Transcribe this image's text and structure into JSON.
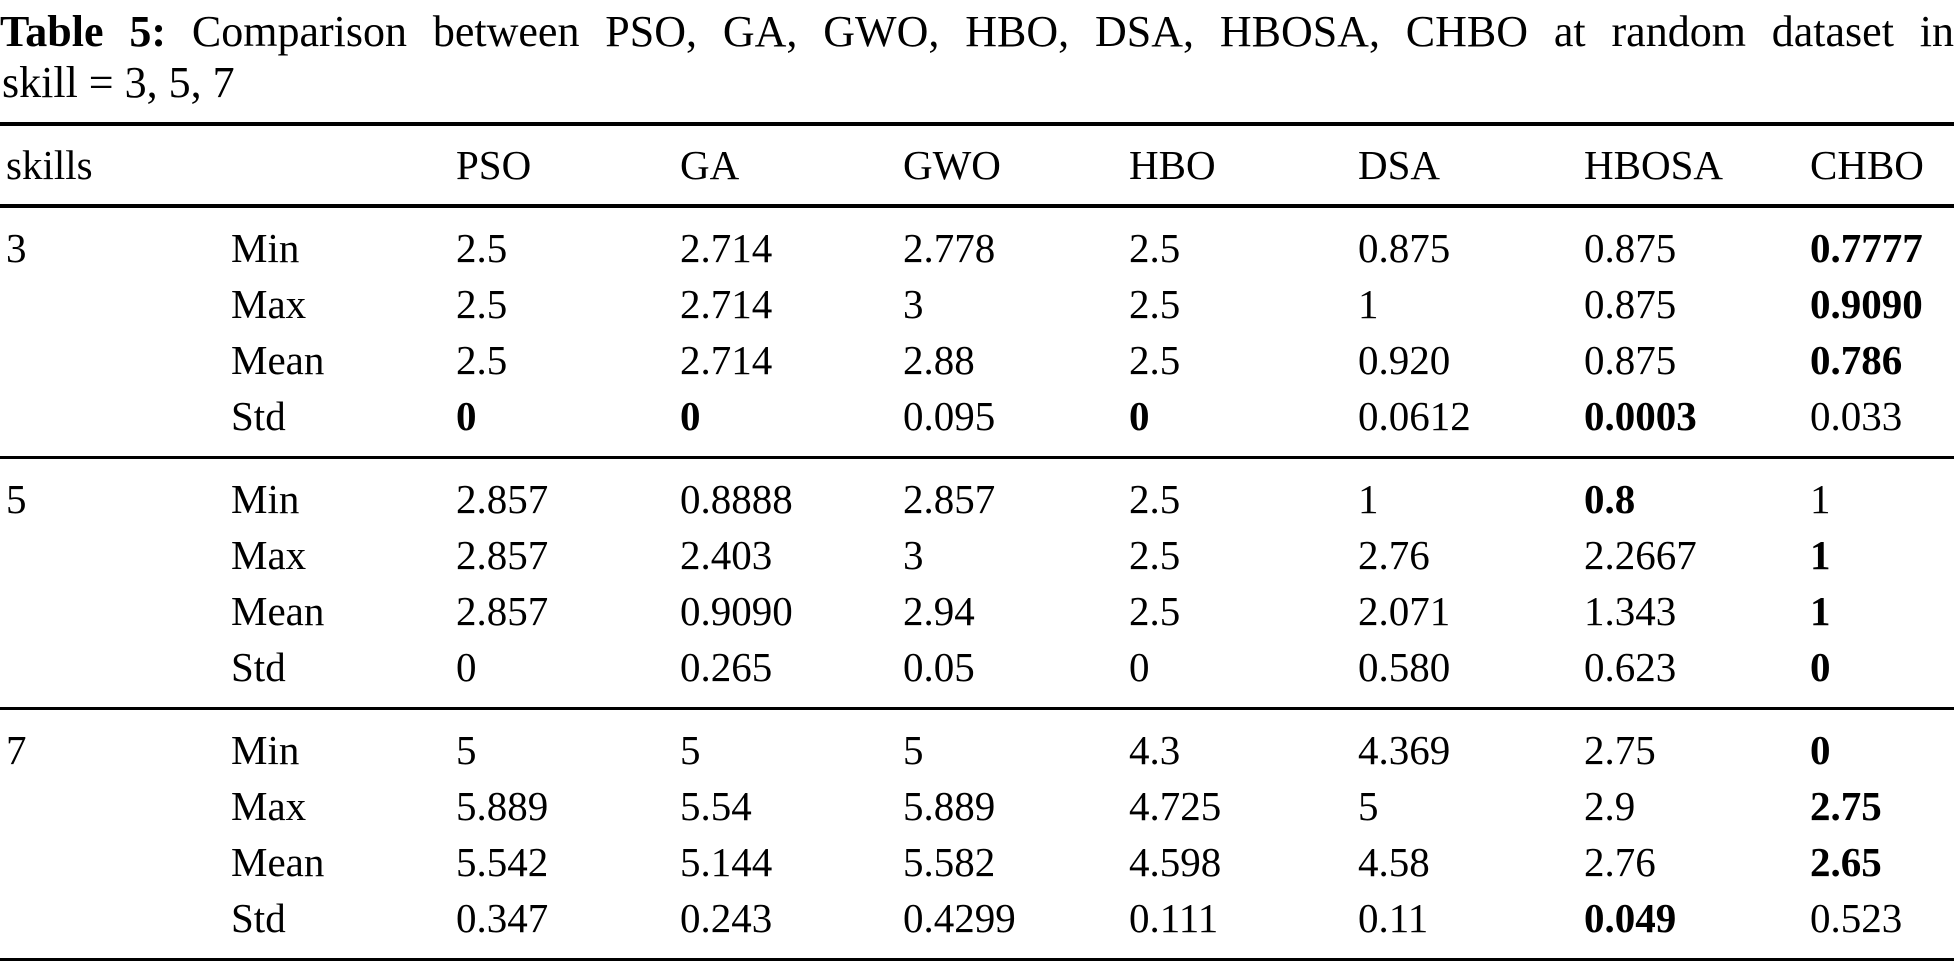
{
  "caption": {
    "label": "Table 5:",
    "line1": "Comparison between PSO, GA, GWO, HBO, DSA, HBOSA, CHBO at random dataset in",
    "line2": "skill = 3, 5, 7"
  },
  "table": {
    "columns": [
      "skills",
      "",
      "PSO",
      "GA",
      "GWO",
      "HBO",
      "DSA",
      "HBOSA",
      "CHBO"
    ],
    "groups": [
      {
        "skill": "3",
        "rows": [
          {
            "stat": "Min",
            "cells": [
              {
                "v": "2.5",
                "b": false
              },
              {
                "v": "2.714",
                "b": false
              },
              {
                "v": "2.778",
                "b": false
              },
              {
                "v": "2.5",
                "b": false
              },
              {
                "v": "0.875",
                "b": false
              },
              {
                "v": "0.875",
                "b": false
              },
              {
                "v": "0.7777",
                "b": true
              }
            ]
          },
          {
            "stat": "Max",
            "cells": [
              {
                "v": "2.5",
                "b": false
              },
              {
                "v": "2.714",
                "b": false
              },
              {
                "v": "3",
                "b": false
              },
              {
                "v": "2.5",
                "b": false
              },
              {
                "v": "1",
                "b": false
              },
              {
                "v": "0.875",
                "b": false
              },
              {
                "v": "0.9090",
                "b": true
              }
            ]
          },
          {
            "stat": "Mean",
            "cells": [
              {
                "v": "2.5",
                "b": false
              },
              {
                "v": "2.714",
                "b": false
              },
              {
                "v": "2.88",
                "b": false
              },
              {
                "v": "2.5",
                "b": false
              },
              {
                "v": "0.920",
                "b": false
              },
              {
                "v": "0.875",
                "b": false
              },
              {
                "v": "0.786",
                "b": true
              }
            ]
          },
          {
            "stat": "Std",
            "cells": [
              {
                "v": "0",
                "b": true
              },
              {
                "v": "0",
                "b": true
              },
              {
                "v": "0.095",
                "b": false
              },
              {
                "v": "0",
                "b": true
              },
              {
                "v": "0.0612",
                "b": false
              },
              {
                "v": "0.0003",
                "b": true
              },
              {
                "v": "0.033",
                "b": false
              }
            ]
          }
        ]
      },
      {
        "skill": "5",
        "rows": [
          {
            "stat": "Min",
            "cells": [
              {
                "v": "2.857",
                "b": false
              },
              {
                "v": "0.8888",
                "b": false
              },
              {
                "v": "2.857",
                "b": false
              },
              {
                "v": "2.5",
                "b": false
              },
              {
                "v": "1",
                "b": false
              },
              {
                "v": "0.8",
                "b": true
              },
              {
                "v": "1",
                "b": false
              }
            ]
          },
          {
            "stat": "Max",
            "cells": [
              {
                "v": "2.857",
                "b": false
              },
              {
                "v": "2.403",
                "b": false
              },
              {
                "v": "3",
                "b": false
              },
              {
                "v": "2.5",
                "b": false
              },
              {
                "v": "2.76",
                "b": false
              },
              {
                "v": "2.2667",
                "b": false
              },
              {
                "v": "1",
                "b": true
              }
            ]
          },
          {
            "stat": "Mean",
            "cells": [
              {
                "v": "2.857",
                "b": false
              },
              {
                "v": "0.9090",
                "b": false
              },
              {
                "v": "2.94",
                "b": false
              },
              {
                "v": "2.5",
                "b": false
              },
              {
                "v": "2.071",
                "b": false
              },
              {
                "v": "1.343",
                "b": false
              },
              {
                "v": "1",
                "b": true
              }
            ]
          },
          {
            "stat": "Std",
            "cells": [
              {
                "v": "0",
                "b": false
              },
              {
                "v": "0.265",
                "b": false
              },
              {
                "v": "0.05",
                "b": false
              },
              {
                "v": "0",
                "b": false
              },
              {
                "v": "0.580",
                "b": false
              },
              {
                "v": "0.623",
                "b": false
              },
              {
                "v": "0",
                "b": true
              }
            ]
          }
        ]
      },
      {
        "skill": "7",
        "rows": [
          {
            "stat": "Min",
            "cells": [
              {
                "v": "5",
                "b": false
              },
              {
                "v": "5",
                "b": false
              },
              {
                "v": "5",
                "b": false
              },
              {
                "v": "4.3",
                "b": false
              },
              {
                "v": "4.369",
                "b": false
              },
              {
                "v": "2.75",
                "b": false
              },
              {
                "v": "0",
                "b": true
              }
            ]
          },
          {
            "stat": "Max",
            "cells": [
              {
                "v": "5.889",
                "b": false
              },
              {
                "v": "5.54",
                "b": false
              },
              {
                "v": "5.889",
                "b": false
              },
              {
                "v": "4.725",
                "b": false
              },
              {
                "v": "5",
                "b": false
              },
              {
                "v": "2.9",
                "b": false
              },
              {
                "v": "2.75",
                "b": true
              }
            ]
          },
          {
            "stat": "Mean",
            "cells": [
              {
                "v": "5.542",
                "b": false
              },
              {
                "v": "5.144",
                "b": false
              },
              {
                "v": "5.582",
                "b": false
              },
              {
                "v": "4.598",
                "b": false
              },
              {
                "v": "4.58",
                "b": false
              },
              {
                "v": "2.76",
                "b": false
              },
              {
                "v": "2.65",
                "b": true
              }
            ]
          },
          {
            "stat": "Std",
            "cells": [
              {
                "v": "0.347",
                "b": false
              },
              {
                "v": "0.243",
                "b": false
              },
              {
                "v": "0.4299",
                "b": false
              },
              {
                "v": "0.111",
                "b": false
              },
              {
                "v": "0.11",
                "b": false
              },
              {
                "v": "0.049",
                "b": true
              },
              {
                "v": "0.523",
                "b": false
              }
            ]
          }
        ]
      }
    ]
  }
}
